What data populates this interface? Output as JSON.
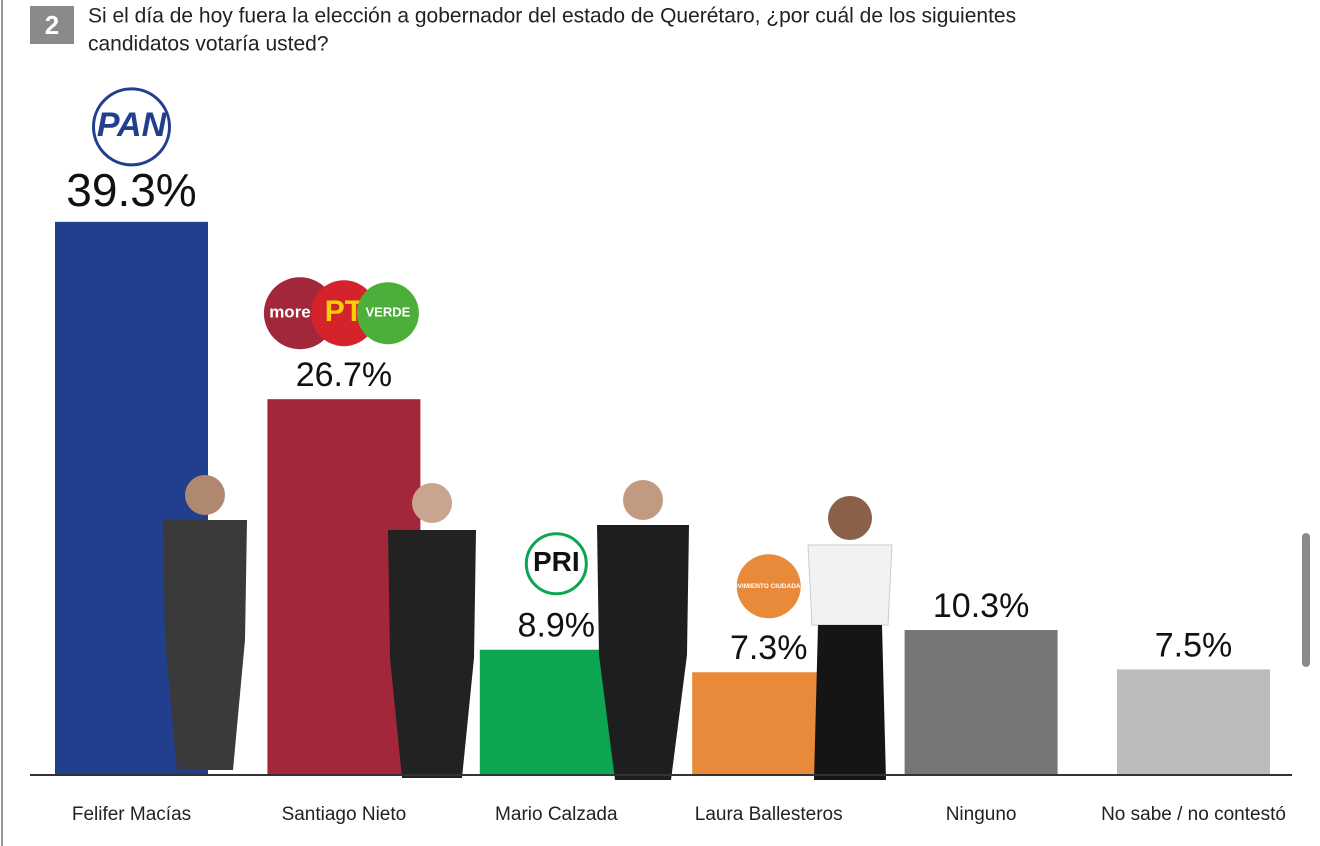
{
  "chart_data": {
    "type": "bar",
    "number": "2",
    "title_lines": [
      "Si el día de hoy fuera la elección a gobernador del estado de Querétaro, ¿por cuál de los siguientes",
      "candidatos votaría usted?"
    ],
    "categories": [
      "Felifer Macías",
      "Santiago Nieto",
      "Mario Calzada",
      "Laura Ballesteros",
      "Ninguno",
      "No sabe / no contestó"
    ],
    "values": [
      39.3,
      26.7,
      8.9,
      7.3,
      10.3,
      7.5
    ],
    "value_labels": [
      "39.3%",
      "26.7%",
      "8.9%",
      "7.3%",
      "10.3%",
      "7.5%"
    ],
    "colors": [
      "#213f8c",
      "#a2273a",
      "#0ca650",
      "#e88a3a",
      "#767676",
      "#bcbcbc"
    ],
    "logos": [
      [
        "PAN"
      ],
      [
        "morena",
        "PT",
        "VERDE"
      ],
      [
        "PRI"
      ],
      [
        "MOVIMIENTO CIUDADANO"
      ],
      [],
      []
    ],
    "ylim": [
      0,
      40
    ]
  }
}
